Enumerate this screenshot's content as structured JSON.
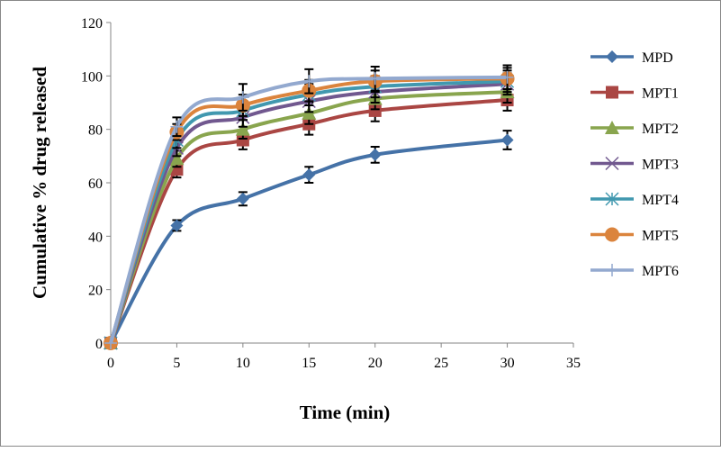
{
  "chart_data": {
    "type": "line",
    "title": "",
    "xlabel": "Time (min)",
    "ylabel": "Cumulative % drug released",
    "xlim": [
      0,
      35
    ],
    "ylim": [
      0,
      120
    ],
    "xticks": [
      0,
      5,
      10,
      15,
      20,
      25,
      30,
      35
    ],
    "yticks": [
      0,
      20,
      40,
      60,
      80,
      100,
      120
    ],
    "grid": false,
    "legend": "right",
    "smooth": true,
    "error_bars": "approx ±3",
    "x": [
      0,
      5,
      10,
      15,
      20,
      30
    ],
    "series": [
      {
        "name": "MPD",
        "color": "#4572a7",
        "marker": "diamond",
        "values": [
          0,
          44,
          54,
          63,
          70.5,
          76
        ],
        "errors": [
          0,
          2,
          2.5,
          3,
          3,
          3.5
        ]
      },
      {
        "name": "MPT1",
        "color": "#aa4643",
        "marker": "square",
        "values": [
          0,
          65,
          76,
          82,
          87,
          91
        ],
        "errors": [
          0,
          3,
          3.5,
          4,
          4,
          4
        ]
      },
      {
        "name": "MPT2",
        "color": "#89a54e",
        "marker": "triangle",
        "values": [
          0,
          69,
          80,
          86,
          91.5,
          94
        ],
        "errors": [
          0,
          3,
          3.5,
          4,
          4,
          4
        ]
      },
      {
        "name": "MPT3",
        "color": "#71588f",
        "marker": "x",
        "values": [
          0,
          73,
          84.5,
          90.5,
          94,
          97
        ],
        "errors": [
          0,
          3,
          3.5,
          4,
          4,
          4
        ]
      },
      {
        "name": "MPT4",
        "color": "#4198af",
        "marker": "star",
        "values": [
          0,
          76,
          87,
          93,
          96,
          98
        ],
        "errors": [
          0,
          3,
          3.5,
          4,
          4,
          4
        ]
      },
      {
        "name": "MPT5",
        "color": "#db843d",
        "marker": "circle",
        "values": [
          0,
          79,
          89,
          94.5,
          98,
          99
        ],
        "errors": [
          0,
          3,
          4,
          4,
          4,
          4
        ]
      },
      {
        "name": "MPT6",
        "color": "#93a9cf",
        "marker": "plus",
        "values": [
          0,
          81,
          92,
          98,
          99,
          99.5
        ],
        "errors": [
          0,
          3.5,
          5,
          4.5,
          4.5,
          4.5
        ]
      }
    ]
  }
}
